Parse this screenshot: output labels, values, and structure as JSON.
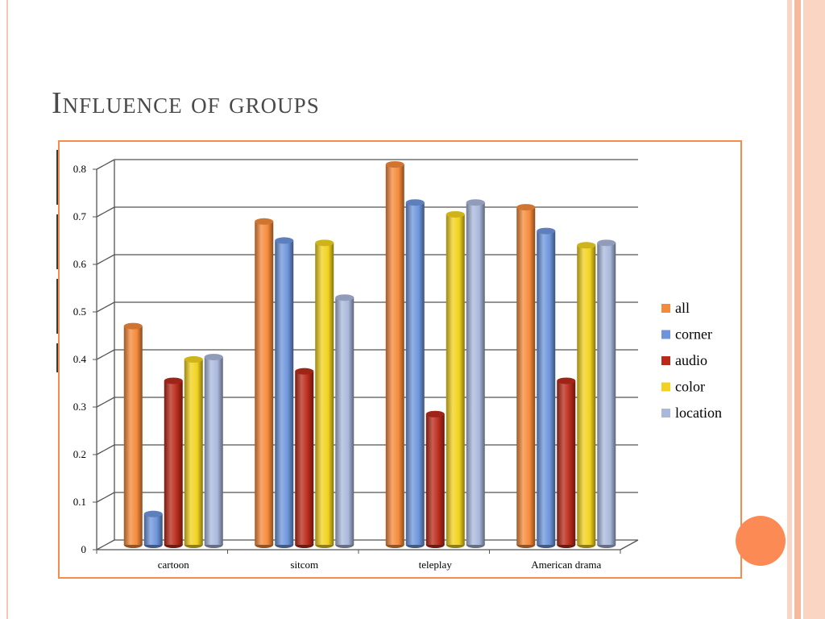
{
  "slide": {
    "title": "Influence of groups"
  },
  "colors": {
    "accent_orange": "#f58b4c",
    "band_light": "#fbd5c4",
    "band_mid": "#f7b99d",
    "circle": "#fb8a55",
    "title_text": "#4a4a4a"
  },
  "chart_data": {
    "type": "bar",
    "title": "",
    "xlabel": "",
    "ylabel": "",
    "categories": [
      "cartoon",
      "sitcom",
      "teleplay",
      "American drama"
    ],
    "ylim": [
      0,
      0.8
    ],
    "yticks": [
      "0",
      "0.1",
      "0.2",
      "0.3",
      "0.4",
      "0.5",
      "0.6",
      "0.7",
      "0.8"
    ],
    "grid": true,
    "legend_position": "right",
    "series": [
      {
        "name": "all",
        "color": "#f58a3a",
        "values": [
          0.46,
          0.68,
          0.8,
          0.71
        ]
      },
      {
        "name": "corner",
        "color": "#6d95dc",
        "values": [
          0.065,
          0.64,
          0.72,
          0.66
        ]
      },
      {
        "name": "audio",
        "color": "#b92a1a",
        "values": [
          0.345,
          0.365,
          0.275,
          0.345
        ]
      },
      {
        "name": "color",
        "color": "#f2d21e",
        "values": [
          0.39,
          0.635,
          0.695,
          0.63
        ]
      },
      {
        "name": "location",
        "color": "#aab8dc",
        "values": [
          0.395,
          0.52,
          0.72,
          0.635
        ]
      }
    ]
  }
}
